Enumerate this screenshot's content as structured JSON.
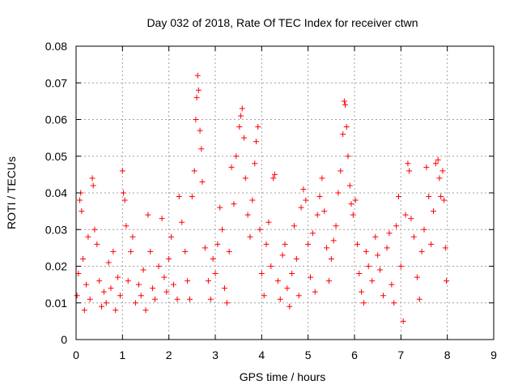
{
  "chart_data": {
    "type": "scatter",
    "title": "Day 032 of 2018, Rate Of TEC Index for receiver ctwn",
    "xlabel": "GPS time / hours",
    "ylabel": "ROTI / TECUs",
    "xlim": [
      0,
      9
    ],
    "ylim": [
      0,
      0.08
    ],
    "x_ticks": [
      0,
      1,
      2,
      3,
      4,
      5,
      6,
      7,
      8,
      9
    ],
    "x_tick_labels": [
      "0",
      "1",
      "2",
      "3",
      "4",
      "5",
      "6",
      "7",
      "8",
      "9"
    ],
    "y_ticks": [
      0,
      0.01,
      0.02,
      0.03,
      0.04,
      0.05,
      0.06,
      0.07,
      0.08
    ],
    "y_tick_labels": [
      "0",
      "0.01",
      "0.02",
      "0.03",
      "0.04",
      "0.05",
      "0.06",
      "0.07",
      "0.08"
    ],
    "grid": true,
    "marker": "+",
    "series": [
      {
        "name": "ROTI",
        "color": "#ff0000",
        "points": [
          [
            0.02,
            0.012
          ],
          [
            0.05,
            0.018
          ],
          [
            0.08,
            0.038
          ],
          [
            0.1,
            0.04
          ],
          [
            0.12,
            0.035
          ],
          [
            0.15,
            0.022
          ],
          [
            0.18,
            0.008
          ],
          [
            0.22,
            0.015
          ],
          [
            0.26,
            0.028
          ],
          [
            0.3,
            0.011
          ],
          [
            0.35,
            0.044
          ],
          [
            0.37,
            0.042
          ],
          [
            0.4,
            0.03
          ],
          [
            0.45,
            0.026
          ],
          [
            0.5,
            0.016
          ],
          [
            0.55,
            0.009
          ],
          [
            0.6,
            0.013
          ],
          [
            0.65,
            0.01
          ],
          [
            0.7,
            0.021
          ],
          [
            0.75,
            0.014
          ],
          [
            0.8,
            0.024
          ],
          [
            0.85,
            0.008
          ],
          [
            0.9,
            0.017
          ],
          [
            0.95,
            0.012
          ],
          [
            1.0,
            0.046
          ],
          [
            1.02,
            0.04
          ],
          [
            1.05,
            0.038
          ],
          [
            1.08,
            0.031
          ],
          [
            1.12,
            0.016
          ],
          [
            1.18,
            0.024
          ],
          [
            1.22,
            0.028
          ],
          [
            1.28,
            0.01
          ],
          [
            1.35,
            0.015
          ],
          [
            1.4,
            0.012
          ],
          [
            1.45,
            0.019
          ],
          [
            1.5,
            0.008
          ],
          [
            1.55,
            0.034
          ],
          [
            1.6,
            0.024
          ],
          [
            1.65,
            0.014
          ],
          [
            1.7,
            0.011
          ],
          [
            1.78,
            0.02
          ],
          [
            1.85,
            0.033
          ],
          [
            1.9,
            0.017
          ],
          [
            1.95,
            0.013
          ],
          [
            2.0,
            0.022
          ],
          [
            2.05,
            0.028
          ],
          [
            2.1,
            0.015
          ],
          [
            2.18,
            0.011
          ],
          [
            2.22,
            0.039
          ],
          [
            2.28,
            0.032
          ],
          [
            2.35,
            0.024
          ],
          [
            2.4,
            0.016
          ],
          [
            2.45,
            0.011
          ],
          [
            2.5,
            0.039
          ],
          [
            2.55,
            0.046
          ],
          [
            2.58,
            0.06
          ],
          [
            2.6,
            0.066
          ],
          [
            2.62,
            0.072
          ],
          [
            2.64,
            0.068
          ],
          [
            2.67,
            0.057
          ],
          [
            2.7,
            0.052
          ],
          [
            2.72,
            0.043
          ],
          [
            2.78,
            0.025
          ],
          [
            2.85,
            0.016
          ],
          [
            2.9,
            0.011
          ],
          [
            2.95,
            0.022
          ],
          [
            3.0,
            0.018
          ],
          [
            3.05,
            0.026
          ],
          [
            3.1,
            0.036
          ],
          [
            3.15,
            0.03
          ],
          [
            3.2,
            0.014
          ],
          [
            3.25,
            0.01
          ],
          [
            3.3,
            0.024
          ],
          [
            3.35,
            0.047
          ],
          [
            3.4,
            0.037
          ],
          [
            3.45,
            0.05
          ],
          [
            3.52,
            0.058
          ],
          [
            3.55,
            0.061
          ],
          [
            3.58,
            0.063
          ],
          [
            3.62,
            0.055
          ],
          [
            3.65,
            0.044
          ],
          [
            3.7,
            0.034
          ],
          [
            3.75,
            0.028
          ],
          [
            3.8,
            0.038
          ],
          [
            3.85,
            0.048
          ],
          [
            3.88,
            0.054
          ],
          [
            3.92,
            0.058
          ],
          [
            3.96,
            0.03
          ],
          [
            4.0,
            0.018
          ],
          [
            4.05,
            0.012
          ],
          [
            4.1,
            0.026
          ],
          [
            4.15,
            0.032
          ],
          [
            4.2,
            0.02
          ],
          [
            4.25,
            0.044
          ],
          [
            4.28,
            0.045
          ],
          [
            4.35,
            0.016
          ],
          [
            4.4,
            0.011
          ],
          [
            4.45,
            0.023
          ],
          [
            4.5,
            0.026
          ],
          [
            4.55,
            0.014
          ],
          [
            4.6,
            0.009
          ],
          [
            4.65,
            0.018
          ],
          [
            4.7,
            0.031
          ],
          [
            4.75,
            0.022
          ],
          [
            4.8,
            0.012
          ],
          [
            4.85,
            0.036
          ],
          [
            4.9,
            0.041
          ],
          [
            4.95,
            0.038
          ],
          [
            5.0,
            0.026
          ],
          [
            5.05,
            0.017
          ],
          [
            5.1,
            0.029
          ],
          [
            5.15,
            0.013
          ],
          [
            5.2,
            0.034
          ],
          [
            5.25,
            0.039
          ],
          [
            5.3,
            0.044
          ],
          [
            5.35,
            0.035
          ],
          [
            5.4,
            0.025
          ],
          [
            5.45,
            0.016
          ],
          [
            5.5,
            0.022
          ],
          [
            5.55,
            0.027
          ],
          [
            5.6,
            0.031
          ],
          [
            5.65,
            0.04
          ],
          [
            5.7,
            0.046
          ],
          [
            5.75,
            0.056
          ],
          [
            5.78,
            0.065
          ],
          [
            5.8,
            0.064
          ],
          [
            5.83,
            0.058
          ],
          [
            5.86,
            0.05
          ],
          [
            5.9,
            0.042
          ],
          [
            5.93,
            0.037
          ],
          [
            5.97,
            0.034
          ],
          [
            6.02,
            0.038
          ],
          [
            6.06,
            0.026
          ],
          [
            6.1,
            0.018
          ],
          [
            6.15,
            0.013
          ],
          [
            6.2,
            0.01
          ],
          [
            6.25,
            0.024
          ],
          [
            6.3,
            0.02
          ],
          [
            6.38,
            0.016
          ],
          [
            6.45,
            0.028
          ],
          [
            6.5,
            0.023
          ],
          [
            6.55,
            0.019
          ],
          [
            6.62,
            0.012
          ],
          [
            6.7,
            0.025
          ],
          [
            6.75,
            0.029
          ],
          [
            6.8,
            0.015
          ],
          [
            6.85,
            0.01
          ],
          [
            6.9,
            0.031
          ],
          [
            6.95,
            0.039
          ],
          [
            7.0,
            0.02
          ],
          [
            7.05,
            0.005
          ],
          [
            7.1,
            0.034
          ],
          [
            7.15,
            0.048
          ],
          [
            7.18,
            0.046
          ],
          [
            7.22,
            0.033
          ],
          [
            7.28,
            0.028
          ],
          [
            7.35,
            0.017
          ],
          [
            7.4,
            0.011
          ],
          [
            7.45,
            0.024
          ],
          [
            7.5,
            0.03
          ],
          [
            7.55,
            0.047
          ],
          [
            7.6,
            0.039
          ],
          [
            7.65,
            0.026
          ],
          [
            7.7,
            0.035
          ],
          [
            7.75,
            0.048
          ],
          [
            7.8,
            0.049
          ],
          [
            7.83,
            0.044
          ],
          [
            7.86,
            0.039
          ],
          [
            7.9,
            0.046
          ],
          [
            7.93,
            0.038
          ],
          [
            7.96,
            0.025
          ],
          [
            7.98,
            0.016
          ]
        ]
      }
    ]
  }
}
